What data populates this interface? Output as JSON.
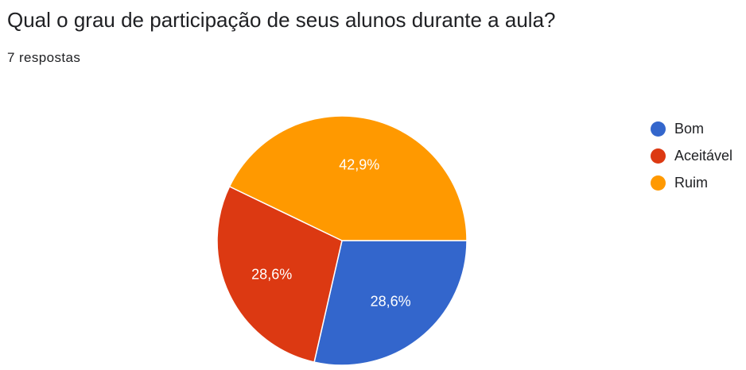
{
  "question": {
    "title": "Qual o grau de participação de seus alunos durante a aula?",
    "response_count": "7 respostas"
  },
  "chart_data": {
    "type": "pie",
    "categories": [
      "Bom",
      "Aceitável",
      "Ruim"
    ],
    "values": [
      2,
      2,
      3
    ],
    "percent_labels": [
      "28,6%",
      "28,6%",
      "42,9%"
    ],
    "colors": [
      "#3366cc",
      "#dc3912",
      "#ff9900"
    ],
    "legend_position": "right",
    "title": ""
  }
}
